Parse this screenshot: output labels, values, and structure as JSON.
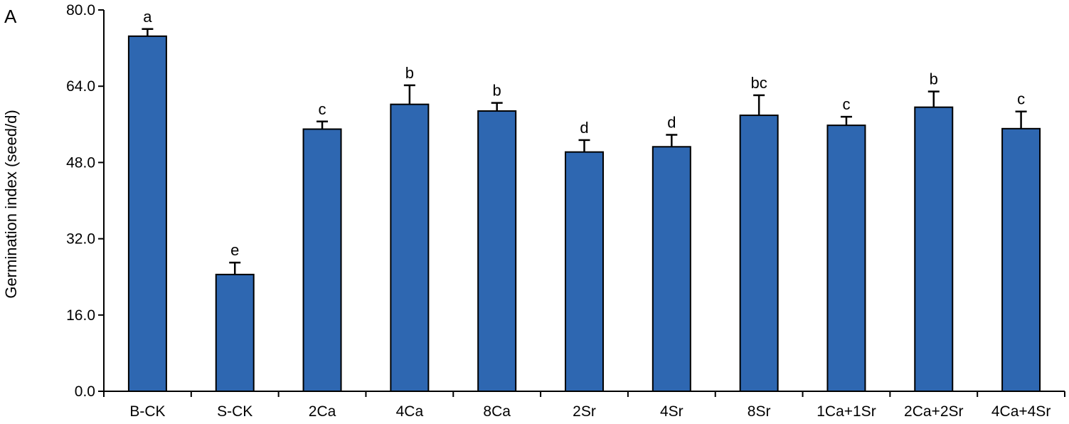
{
  "panel_label": "A",
  "colors": {
    "bar": "#2E67B1",
    "bar_edge": "#000000",
    "axis": "#000000"
  },
  "chart_data": {
    "type": "bar",
    "title": "",
    "xlabel": "",
    "ylabel": "Germination index (seed/d)",
    "ylim": [
      0,
      80
    ],
    "yticks": [
      0,
      16,
      32,
      48,
      64,
      80
    ],
    "ytick_labels": [
      "0.0",
      "16.0",
      "32.0",
      "48.0",
      "64.0",
      "80.0"
    ],
    "categories": [
      "B-CK",
      "S-CK",
      "2Ca",
      "4Ca",
      "8Ca",
      "2Sr",
      "4Sr",
      "8Sr",
      "1Ca+1Sr",
      "2Ca+2Sr",
      "4Ca+4Sr"
    ],
    "values": [
      74.5,
      24.5,
      55.0,
      60.2,
      58.8,
      50.2,
      51.3,
      57.9,
      55.8,
      59.6,
      55.1
    ],
    "errors": [
      1.5,
      2.5,
      1.6,
      4.0,
      1.7,
      2.5,
      2.5,
      4.2,
      1.8,
      3.3,
      3.6
    ],
    "significance_labels": [
      "a",
      "e",
      "c",
      "b",
      "b",
      "d",
      "d",
      "bc",
      "c",
      "b",
      "c"
    ],
    "grid": false,
    "legend": "none"
  }
}
